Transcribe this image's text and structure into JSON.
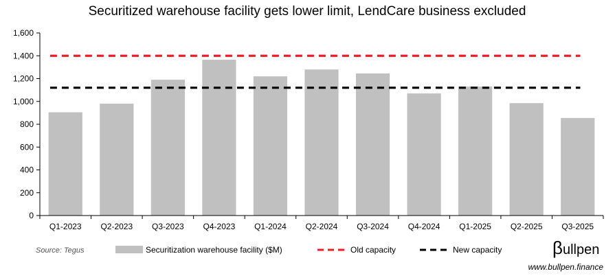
{
  "chart_data": {
    "type": "bar",
    "title": "Securitized warehouse facility gets lower limit, LendCare business excluded",
    "categories": [
      "Q1-2023",
      "Q2-2023",
      "Q3-2023",
      "Q4-2023",
      "Q1-2024",
      "Q2-2024",
      "Q3-2024",
      "Q4-2024",
      "Q1-2025",
      "Q2-2025",
      "Q3-2025"
    ],
    "series": [
      {
        "name": "Securitization warehouse facility ($M)",
        "values": [
          905,
          980,
          1190,
          1365,
          1220,
          1280,
          1245,
          1070,
          1130,
          985,
          855
        ],
        "color": "#c0c0c0"
      }
    ],
    "reference_lines": [
      {
        "name": "Old capacity",
        "value": 1400,
        "color": "#ee1c25",
        "style": "dashed"
      },
      {
        "name": "New capacity",
        "value": 1120,
        "color": "#000000",
        "style": "dashed"
      }
    ],
    "ylim": [
      0,
      1600
    ],
    "yticks": [
      0,
      200,
      400,
      600,
      800,
      1000,
      1200,
      1400,
      1600
    ],
    "ytick_labels": [
      "0",
      "200",
      "400",
      "600",
      "800",
      "1,000",
      "1,200",
      "1,400",
      "1,600"
    ],
    "xlabel": "",
    "ylabel": "",
    "legend_position": "bottom"
  },
  "footer": {
    "source": "Source: Tegus",
    "brand_symbol": "β",
    "brand_rest": "ullpen",
    "url": "www.bullpen.finance"
  }
}
